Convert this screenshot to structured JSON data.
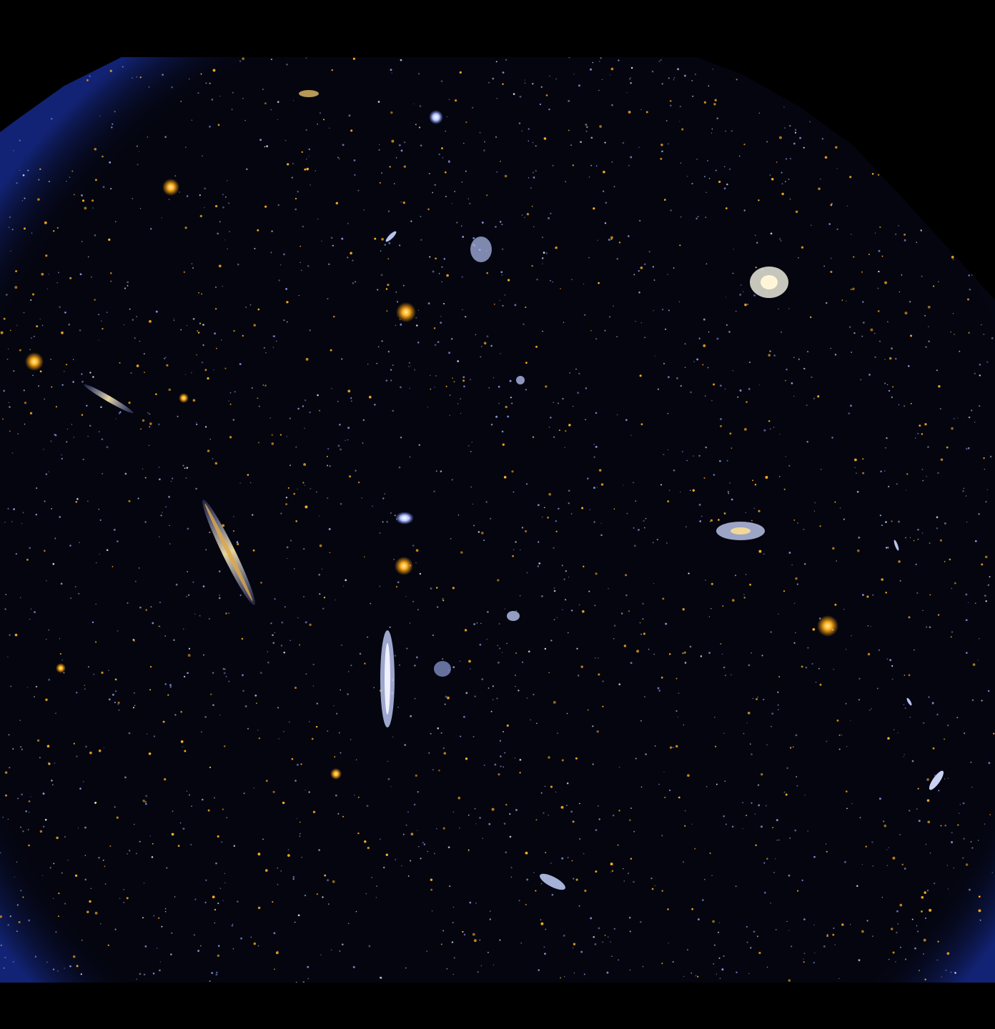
{
  "image": {
    "subject": "ultraviolet-sky-survey-field",
    "background_color": "#000000",
    "field_color": "#04050f",
    "rim_color": "#1e3cc8",
    "star_colors": {
      "far_uv": "#9fb2ff",
      "near_uv": "#ffb020",
      "white": "#e8ecff"
    }
  }
}
